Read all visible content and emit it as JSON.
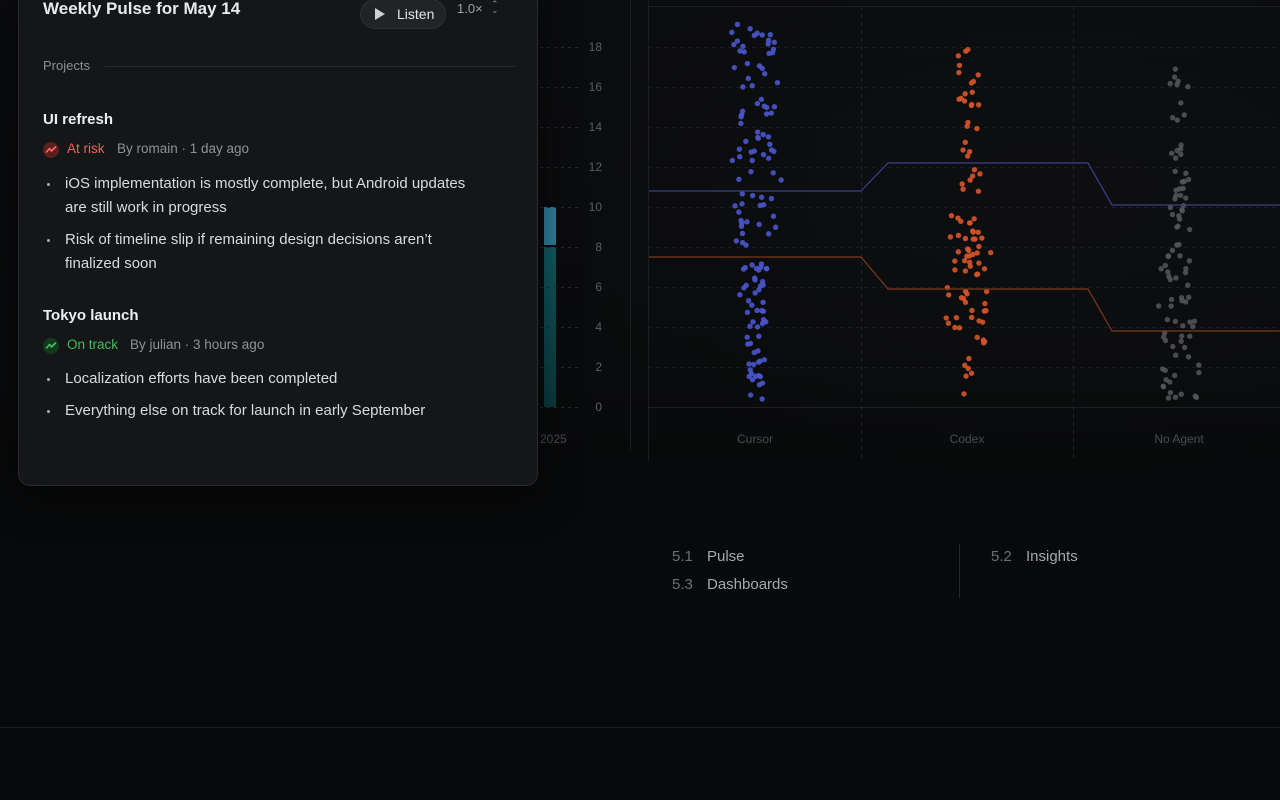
{
  "panel": {
    "title": "Weekly Pulse for May 14",
    "listen_label": "Listen",
    "speed": "1.0×",
    "section_label": "Projects",
    "projects": [
      {
        "name": "UI refresh",
        "status": "At risk",
        "status_color": "#e5534b",
        "meta": "By romain · 1 day ago",
        "items": [
          "iOS implementation is mostly complete, but Android updates are still work in progress",
          "Risk of timeline slip if remaining design decisions aren’t finalized soon"
        ]
      },
      {
        "name": "Tokyo launch",
        "status": "On track",
        "status_color": "#3fb950",
        "meta": "By julian · 3 hours ago",
        "items": [
          "Localization efforts have been completed",
          "Everything else on track for launch in early September"
        ]
      }
    ]
  },
  "chart_data": {
    "type": "scatter",
    "categories": [
      "Cursor",
      "Codex",
      "No Agent"
    ],
    "y_ticks": [
      "0",
      "2",
      "4",
      "6",
      "8",
      "10",
      "12",
      "14",
      "16",
      "18"
    ],
    "ylim": [
      0,
      18
    ],
    "grid": true,
    "partial_x_label": "2025",
    "colors": {
      "Cursor": "#4a55c9",
      "Codex": "#d2542a",
      "No Agent": "#55575c"
    },
    "series": [
      {
        "values": [
          10.8,
          10.8,
          12.2,
          12.2,
          10.1,
          10.1
        ]
      },
      {
        "values": [
          7.5,
          7.5,
          5.9,
          5.9,
          3.8,
          3.8
        ]
      }
    ]
  },
  "left_bars": {
    "colors": [
      "#2f7f9a",
      "#0f5b62"
    ],
    "values": [
      10,
      8
    ]
  },
  "nav": [
    {
      "num": "5.1",
      "label": "Pulse"
    },
    {
      "num": "5.2",
      "label": "Insights"
    },
    {
      "num": "5.3",
      "label": "Dashboards"
    }
  ]
}
